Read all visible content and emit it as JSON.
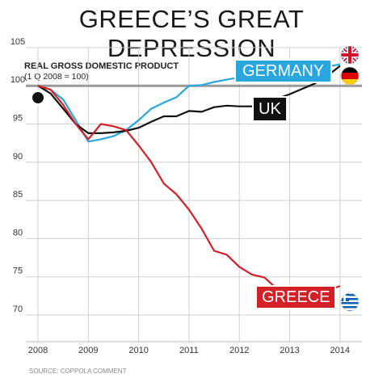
{
  "title": "GREECE’S GREAT DEPRESSION",
  "subtitle_line1": "REAL GROSS DOMESTIC PRODUCT",
  "subtitle_line2": "(1 Q 2008 = 100)",
  "source": "SOURCE: COPPOLA COMMENT",
  "colors": {
    "greece": "#d32027",
    "germany": "#2aa6df",
    "uk": "#111111",
    "reference_line": "#9a9a9a",
    "grid": "#d0d0d0"
  },
  "chart_data": {
    "type": "line",
    "title": "GREECE’S GREAT DEPRESSION",
    "subtitle": "REAL GROSS DOMESTIC PRODUCT (1 Q 2008 = 100)",
    "xlabel": "",
    "ylabel": "",
    "x_ticks": [
      "2008",
      "2009",
      "2010",
      "2011",
      "2012",
      "2013",
      "2014"
    ],
    "y_ticks": [
      70,
      75,
      80,
      85,
      90,
      95,
      100,
      105
    ],
    "xlim": [
      2008,
      2014.2
    ],
    "ylim": [
      70,
      105
    ],
    "grid": true,
    "reference_line": 100,
    "series": [
      {
        "name": "GERMANY",
        "x": [
          2008,
          2008.25,
          2008.5,
          2008.75,
          2009,
          2009.25,
          2009.5,
          2009.75,
          2010,
          2010.25,
          2010.5,
          2010.75,
          2011,
          2011.25,
          2011.5,
          2011.75,
          2012,
          2012.25,
          2012.5,
          2012.75,
          2013,
          2013.25,
          2013.5,
          2013.75,
          2014
        ],
        "values": [
          100,
          99.5,
          98.2,
          95.5,
          92.7,
          93.0,
          93.4,
          94.2,
          95.5,
          97.0,
          97.8,
          98.5,
          100.0,
          100.1,
          100.5,
          100.8,
          101.1,
          101.2,
          101.4,
          101.0,
          101.4,
          101.7,
          102.0,
          102.5,
          102.8
        ]
      },
      {
        "name": "UK",
        "x": [
          2008,
          2008.25,
          2008.5,
          2008.75,
          2009,
          2009.25,
          2009.5,
          2009.75,
          2010,
          2010.25,
          2010.5,
          2010.75,
          2011,
          2011.25,
          2011.5,
          2011.75,
          2012,
          2012.25,
          2012.5,
          2012.75,
          2013,
          2013.25,
          2013.5,
          2013.75,
          2014
        ],
        "values": [
          100,
          99.0,
          97.0,
          95.0,
          93.8,
          93.8,
          93.9,
          94.1,
          94.5,
          95.3,
          96.0,
          96.0,
          96.7,
          96.6,
          97.2,
          97.4,
          97.3,
          97.3,
          97.8,
          98.3,
          98.9,
          99.6,
          100.3,
          101.3,
          102.6
        ]
      },
      {
        "name": "GREECE",
        "x": [
          2008,
          2008.25,
          2008.5,
          2008.75,
          2009,
          2009.25,
          2009.5,
          2009.75,
          2010,
          2010.25,
          2010.5,
          2010.75,
          2011,
          2011.25,
          2011.5,
          2011.75,
          2012,
          2012.25,
          2012.5,
          2012.75,
          2013,
          2013.25,
          2013.5,
          2013.75,
          2014
        ],
        "values": [
          100,
          99.5,
          97.5,
          95.0,
          93.0,
          95.0,
          94.7,
          94.2,
          92.2,
          90.0,
          87.2,
          85.8,
          83.8,
          81.3,
          78.4,
          77.9,
          76.3,
          75.3,
          74.9,
          73.4,
          72.9,
          72.7,
          72.6,
          73.2,
          73.8
        ]
      }
    ]
  }
}
